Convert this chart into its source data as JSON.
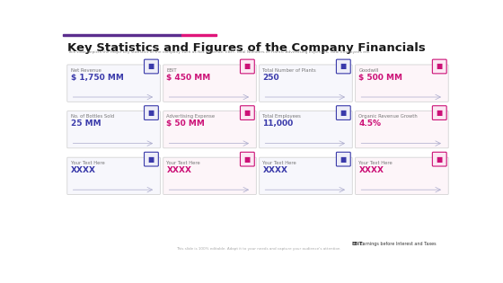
{
  "title": "Key Statistics and Figures of the Company Financials",
  "subtitle": "This slide depicts the major key statistics of the company such as Net Revenue, EBIT, Total Numbers of Plants, Advertising Expenses, Total Employees etc.",
  "bg_color": "#ffffff",
  "title_color": "#1a1a1a",
  "subtitle_color": "#888888",
  "top_bar1_color": "#5b2d8e",
  "top_bar2_color": "#e0157a",
  "footer_note_bold": "EBIT:",
  "footer_note_rest": " Earnings before Interest and Taxes",
  "footer_small": "This slide is 100% editable. Adapt it to your needs and capture your audience's attention",
  "rows": [
    {
      "items": [
        {
          "label": "Net Revenue",
          "value": "$ 1,750 MM",
          "icon_color": "#3a3aaa",
          "border_color": "#3a3aaa",
          "value_color": "#3a3aaa",
          "card_bg": "#f7f7fc"
        },
        {
          "label": "EBIT",
          "value": "$ 450 MM",
          "icon_color": "#cc1177",
          "border_color": "#cc1177",
          "value_color": "#cc1177",
          "card_bg": "#fdf5f9"
        },
        {
          "label": "Total Number of Plants",
          "value": "250",
          "icon_color": "#3a3aaa",
          "border_color": "#3a3aaa",
          "value_color": "#3a3aaa",
          "card_bg": "#f7f7fc"
        },
        {
          "label": "Goodwill",
          "value": "$ 500 MM",
          "icon_color": "#cc1177",
          "border_color": "#cc1177",
          "value_color": "#cc1177",
          "card_bg": "#fdf5f9"
        }
      ]
    },
    {
      "items": [
        {
          "label": "No. of Bottles Sold",
          "value": "25 MM",
          "icon_color": "#3a3aaa",
          "border_color": "#3a3aaa",
          "value_color": "#3a3aaa",
          "card_bg": "#f7f7fc"
        },
        {
          "label": "Advertising Expense",
          "value": "$ 50 MM",
          "icon_color": "#cc1177",
          "border_color": "#cc1177",
          "value_color": "#cc1177",
          "card_bg": "#fdf5f9"
        },
        {
          "label": "Total Employees",
          "value": "11,000",
          "icon_color": "#3a3aaa",
          "border_color": "#3a3aaa",
          "value_color": "#3a3aaa",
          "card_bg": "#f7f7fc"
        },
        {
          "label": "Organic Revenue Growth",
          "value": "4.5%",
          "icon_color": "#cc1177",
          "border_color": "#cc1177",
          "value_color": "#cc1177",
          "card_bg": "#fdf5f9"
        }
      ]
    },
    {
      "items": [
        {
          "label": "Your Text Here",
          "value": "XXXX",
          "icon_color": "#3a3aaa",
          "border_color": "#3a3aaa",
          "value_color": "#3a3aaa",
          "card_bg": "#f7f7fc"
        },
        {
          "label": "Your Text Here",
          "value": "XXXX",
          "icon_color": "#cc1177",
          "border_color": "#cc1177",
          "value_color": "#cc1177",
          "card_bg": "#fdf5f9"
        },
        {
          "label": "Your Text Here",
          "value": "XXXX",
          "icon_color": "#3a3aaa",
          "border_color": "#3a3aaa",
          "value_color": "#3a3aaa",
          "card_bg": "#f7f7fc"
        },
        {
          "label": "Your Text Here",
          "value": "XXXX",
          "icon_color": "#cc1177",
          "border_color": "#cc1177",
          "value_color": "#cc1177",
          "card_bg": "#fdf5f9"
        }
      ]
    }
  ]
}
